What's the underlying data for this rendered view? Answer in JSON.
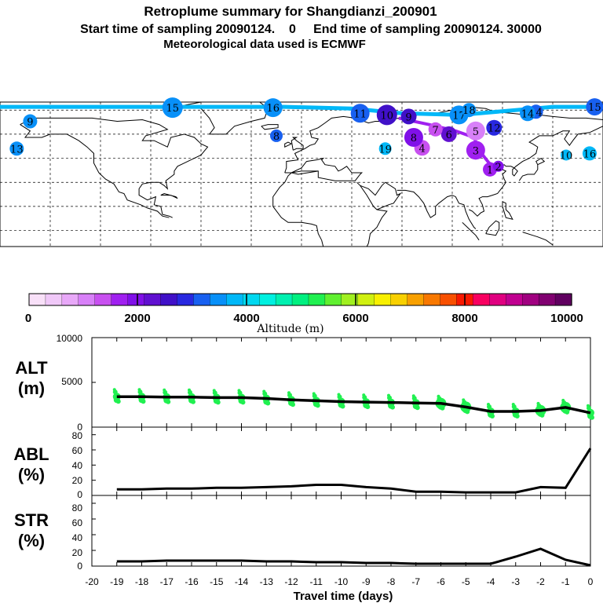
{
  "title": {
    "line1": "Retroplume summary for Shangdianzi_200901",
    "line2": "Start time of sampling 20090124.    0     End time of sampling 20090124. 30000",
    "line3": "Meteorological data used is ECMWF"
  },
  "colorbar": {
    "colors": [
      "#f8e0f8",
      "#f0c8f8",
      "#e8a8f8",
      "#d880f8",
      "#c850f0",
      "#a020f0",
      "#8010e8",
      "#6010d0",
      "#4010c8",
      "#2828e0",
      "#1860f0",
      "#0890f8",
      "#00b8f8",
      "#00d8f0",
      "#00f0e0",
      "#00f0b0",
      "#00f080",
      "#20f050",
      "#60f030",
      "#a0f020",
      "#d0f010",
      "#f8f000",
      "#f8d000",
      "#f8a000",
      "#f87800",
      "#f85000",
      "#f81800",
      "#f80060",
      "#e00080",
      "#c00090",
      "#a00080",
      "#800070",
      "#600060"
    ],
    "tick_labels": [
      "0",
      "2000",
      "4000",
      "6000",
      "8000",
      "10000"
    ],
    "label": "Altitude (m)"
  },
  "map": {
    "points": [
      {
        "label": "1",
        "lon": 112.5,
        "lat": 38,
        "alt": 1800,
        "size": 9
      },
      {
        "label": "2",
        "lon": 117.5,
        "lat": 40,
        "alt": 2000,
        "size": 7
      },
      {
        "label": "3",
        "lon": 104,
        "lat": 50,
        "alt": 1700,
        "size": 12
      },
      {
        "label": "4",
        "lon": 72,
        "lat": 51.5,
        "alt": 1500,
        "size": 10
      },
      {
        "label": "5",
        "lon": 104,
        "lat": 62,
        "alt": 1200,
        "size": 12
      },
      {
        "label": "6",
        "lon": 88,
        "lat": 60,
        "alt": 2200,
        "size": 10
      },
      {
        "label": "7",
        "lon": 80,
        "lat": 63,
        "alt": 1300,
        "size": 9
      },
      {
        "label": "8",
        "lon": 67,
        "lat": 58,
        "alt": 2100,
        "size": 12
      },
      {
        "label": "9",
        "lon": 64,
        "lat": 71,
        "alt": 2500,
        "size": 10
      },
      {
        "label": "10",
        "lon": 51,
        "lat": 72,
        "alt": 2700,
        "size": 13
      },
      {
        "label": "11",
        "lon": 35,
        "lat": 73,
        "alt": 3100,
        "size": 12
      },
      {
        "label": "12",
        "lon": 115,
        "lat": 64,
        "alt": 2900,
        "size": 10
      },
      {
        "label": "13",
        "lon": -170,
        "lat": 51,
        "alt": 3400,
        "size": 9
      },
      {
        "label": "14",
        "lon": 140,
        "lat": 74,
        "alt": 3300,
        "size": 9
      },
      {
        "label": "15",
        "lon": -77,
        "lat": 76.5,
        "alt": 3400,
        "size": 13
      },
      {
        "label": "16",
        "lon": -17,
        "lat": 76.5,
        "alt": 3500,
        "size": 12
      },
      {
        "label": "17",
        "lon": 94,
        "lat": 72,
        "alt": 3600,
        "size": 12
      },
      {
        "label": "18",
        "lon": 100,
        "lat": 75,
        "alt": 3500,
        "size": 9
      },
      {
        "label": "19",
        "lon": 50,
        "lat": 51,
        "alt": 3700,
        "size": 8
      },
      {
        "label": "8",
        "lon": -15,
        "lat": 59,
        "alt": 3200,
        "size": 8
      },
      {
        "label": "16",
        "lon": 172,
        "lat": 48,
        "alt": 3800,
        "size": 9
      },
      {
        "label": "10",
        "lon": 158,
        "lat": 47,
        "alt": 3900,
        "size": 7
      },
      {
        "label": "9",
        "lon": -162,
        "lat": 68,
        "alt": 3400,
        "size": 9
      },
      {
        "label": "15",
        "lon": 175,
        "lat": 77,
        "alt": 3300,
        "size": 11
      },
      {
        "label": "14",
        "lon": 135,
        "lat": 73,
        "alt": 3500,
        "size": 10
      }
    ],
    "track": [
      {
        "lon": -180,
        "lat": 77
      },
      {
        "lon": -70,
        "lat": 77
      },
      {
        "lon": -10,
        "lat": 77
      },
      {
        "lon": 30,
        "lat": 76
      },
      {
        "lon": 60,
        "lat": 73
      },
      {
        "lon": 95,
        "lat": 72
      },
      {
        "lon": 150,
        "lat": 77
      },
      {
        "lon": 180,
        "lat": 77
      }
    ],
    "inner_track": [
      {
        "lon": 58,
        "lat": 70
      },
      {
        "lon": 76,
        "lat": 66
      },
      {
        "lon": 92,
        "lat": 62
      },
      {
        "lon": 103,
        "lat": 58
      },
      {
        "lon": 106,
        "lat": 50
      },
      {
        "lon": 112,
        "lat": 42
      },
      {
        "lon": 117,
        "lat": 40
      }
    ]
  },
  "chart_data": [
    {
      "type": "scatter",
      "name": "ALT",
      "ylabel": "ALT\n(m)",
      "ylim": [
        0,
        10000
      ],
      "yticks": [
        "10000",
        "5000",
        "0"
      ],
      "x": [
        -19,
        -18,
        -17,
        -16,
        -15,
        -14,
        -13,
        -12,
        -11,
        -10,
        -9,
        -8,
        -7,
        -6,
        -5,
        -4,
        -3,
        -2,
        -1,
        0
      ],
      "line_values": [
        3400,
        3400,
        3350,
        3350,
        3300,
        3300,
        3200,
        3050,
        2950,
        2850,
        2800,
        2750,
        2700,
        2650,
        2250,
        1750,
        1750,
        1850,
        2200,
        1600
      ],
      "point_color": "#20f050"
    },
    {
      "type": "line",
      "name": "ABL",
      "ylabel": "ABL\n(%)",
      "ylim": [
        0,
        90
      ],
      "yticks": [
        "80",
        "60",
        "40",
        "20",
        "0"
      ],
      "x": [
        -19,
        -18,
        -17,
        -16,
        -15,
        -14,
        -13,
        -12,
        -11,
        -10,
        -9,
        -8,
        -7,
        -6,
        -5,
        -4,
        -3,
        -2,
        -1,
        0
      ],
      "values": [
        8,
        8,
        9,
        9,
        10,
        10,
        11,
        12,
        14,
        14,
        11,
        9,
        5,
        5,
        4,
        4,
        4,
        11,
        10,
        62
      ]
    },
    {
      "type": "line",
      "name": "STR",
      "ylabel": "STR\n(%)",
      "ylim": [
        0,
        90
      ],
      "yticks": [
        "80",
        "60",
        "40",
        "20",
        "0"
      ],
      "x": [
        -19,
        -18,
        -17,
        -16,
        -15,
        -14,
        -13,
        -12,
        -11,
        -10,
        -9,
        -8,
        -7,
        -6,
        -5,
        -4,
        -3,
        -2,
        -1,
        0
      ],
      "values": [
        6,
        6,
        7,
        7,
        7,
        7,
        6,
        6,
        5,
        5,
        4,
        4,
        3,
        3,
        3,
        3,
        12,
        22,
        8,
        1
      ]
    }
  ],
  "xaxis": {
    "tick_labels": [
      "-20",
      "-19",
      "-18",
      "-17",
      "-16",
      "-15",
      "-14",
      "-13",
      "-12",
      "-11",
      "-10",
      "-9",
      "-8",
      "-7",
      "-6",
      "-5",
      "-4",
      "-3",
      "-2",
      "-1",
      "0"
    ],
    "label": "Travel time (days)"
  }
}
